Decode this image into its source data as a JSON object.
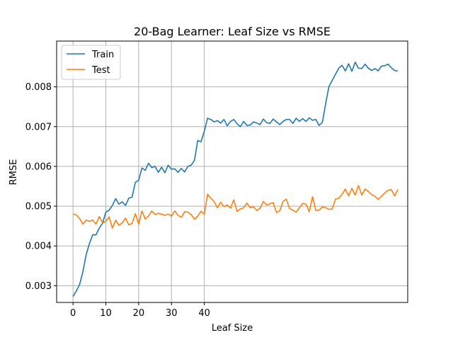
{
  "chart_data": {
    "type": "line",
    "title": "20-Bag Learner: Leaf Size vs RMSE",
    "xlabel": "Leaf Size",
    "ylabel": "RMSE",
    "xlim": [
      -5,
      102
    ],
    "ylim": [
      0.00258,
      0.00915
    ],
    "xticks": [
      0,
      10,
      20,
      30,
      40
    ],
    "xtick_labels": [
      "0",
      "10",
      "20",
      "30",
      "40"
    ],
    "yticks": [
      0.003,
      0.004,
      0.005,
      0.006,
      0.007,
      0.008
    ],
    "ytick_labels": [
      "0.003",
      "0.004",
      "0.005",
      "0.006",
      "0.007",
      "0.008"
    ],
    "grid": true,
    "legend_position": "upper-left",
    "x": [
      0,
      1,
      2,
      3,
      4,
      5,
      6,
      7,
      8,
      9,
      10,
      11,
      12,
      13,
      14,
      15,
      16,
      17,
      18,
      19,
      20,
      21,
      22,
      23,
      24,
      25,
      26,
      27,
      28,
      29,
      30,
      31,
      32,
      33,
      34,
      35,
      36,
      37,
      38,
      39,
      40,
      41,
      42,
      43,
      44,
      45,
      46,
      47,
      48,
      49,
      50,
      51,
      52,
      53,
      54,
      55,
      56,
      57,
      58,
      59,
      60,
      61,
      62,
      63,
      64,
      65,
      66,
      67,
      68,
      69,
      70,
      71,
      72,
      73,
      74,
      75,
      76,
      77,
      78,
      79,
      80,
      81,
      82,
      83,
      84,
      85,
      86,
      87,
      88,
      89,
      90,
      91,
      92,
      93,
      94,
      95,
      96,
      97,
      98,
      99
    ],
    "series": [
      {
        "name": "Train",
        "color": "#1f77b4",
        "values": [
          0.00273,
          0.00287,
          0.00303,
          0.00335,
          0.00378,
          0.00406,
          0.00428,
          0.00428,
          0.00445,
          0.00457,
          0.00485,
          0.0049,
          0.00502,
          0.00519,
          0.00505,
          0.00511,
          0.00502,
          0.0052,
          0.00523,
          0.0056,
          0.00565,
          0.00596,
          0.0059,
          0.00608,
          0.00597,
          0.006,
          0.00585,
          0.00598,
          0.00584,
          0.00603,
          0.00593,
          0.00594,
          0.00585,
          0.00595,
          0.00586,
          0.006,
          0.00603,
          0.00615,
          0.00665,
          0.00662,
          0.00688,
          0.00721,
          0.00718,
          0.00712,
          0.00715,
          0.00709,
          0.00718,
          0.00702,
          0.00713,
          0.00718,
          0.00707,
          0.007,
          0.00713,
          0.00703,
          0.00704,
          0.00712,
          0.00709,
          0.00705,
          0.00719,
          0.0071,
          0.00708,
          0.00719,
          0.00712,
          0.00705,
          0.00713,
          0.00718,
          0.00718,
          0.00708,
          0.00721,
          0.00713,
          0.0072,
          0.00713,
          0.00722,
          0.00716,
          0.00718,
          0.00703,
          0.00711,
          0.00758,
          0.00801,
          0.00816,
          0.00832,
          0.00847,
          0.00854,
          0.0084,
          0.00858,
          0.00839,
          0.00862,
          0.00847,
          0.00846,
          0.00857,
          0.00847,
          0.00841,
          0.00846,
          0.0084,
          0.00852,
          0.00853,
          0.00857,
          0.00848,
          0.00841,
          0.0084
        ]
      },
      {
        "name": "Test",
        "color": "#ff7f0e",
        "values": [
          0.0048,
          0.00478,
          0.00469,
          0.00455,
          0.00465,
          0.00462,
          0.00465,
          0.00455,
          0.00474,
          0.00458,
          0.00462,
          0.00473,
          0.00445,
          0.00465,
          0.00452,
          0.00458,
          0.0047,
          0.00453,
          0.00457,
          0.00481,
          0.00455,
          0.00488,
          0.00468,
          0.00475,
          0.00488,
          0.00479,
          0.00482,
          0.0048,
          0.00477,
          0.0048,
          0.00475,
          0.00488,
          0.00477,
          0.00472,
          0.00486,
          0.00485,
          0.00479,
          0.00467,
          0.00475,
          0.00487,
          0.0048,
          0.0053,
          0.0052,
          0.00512,
          0.00496,
          0.0051,
          0.00499,
          0.00503,
          0.00495,
          0.00516,
          0.00487,
          0.00493,
          0.00496,
          0.00508,
          0.00496,
          0.00499,
          0.00489,
          0.00495,
          0.00512,
          0.00503,
          0.00506,
          0.00509,
          0.00484,
          0.00488,
          0.00512,
          0.00518,
          0.00494,
          0.0049,
          0.00485,
          0.00496,
          0.00507,
          0.00505,
          0.00486,
          0.00524,
          0.00489,
          0.0049,
          0.00498,
          0.00496,
          0.00492,
          0.00493,
          0.00518,
          0.0052,
          0.0053,
          0.00543,
          0.00526,
          0.00545,
          0.00528,
          0.00552,
          0.00528,
          0.00543,
          0.00537,
          0.00529,
          0.00525,
          0.00517,
          0.00525,
          0.00533,
          0.0054,
          0.00542,
          0.00526,
          0.00542
        ]
      }
    ]
  }
}
